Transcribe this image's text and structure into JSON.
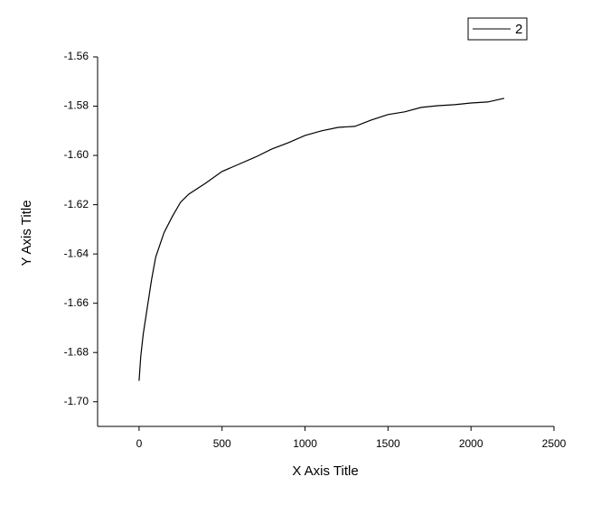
{
  "chart_data": {
    "type": "line",
    "x_label": "X Axis Title",
    "y_label": "Y Axis Title",
    "xlim": [
      -250,
      2500
    ],
    "ylim": [
      -1.71,
      -1.56
    ],
    "xticks": [
      0,
      500,
      1000,
      1500,
      2000,
      2500
    ],
    "yticks": [
      -1.56,
      -1.58,
      {
        "value": -1.6,
        "label": "-1.60"
      },
      -1.62,
      -1.64,
      -1.66,
      -1.68,
      {
        "value": -1.7,
        "label": "-1.70"
      }
    ],
    "legend": "top-right",
    "series": [
      {
        "name": "2",
        "color": "#000000",
        "x": [
          0,
          10,
          25,
          50,
          75,
          100,
          150,
          200,
          250,
          300,
          400,
          500,
          600,
          700,
          800,
          900,
          1000,
          1100,
          1200,
          1300,
          1400,
          1500,
          1600,
          1700,
          1800,
          1900,
          2000,
          2100,
          2200
        ],
        "values": [
          -1.6915,
          -1.6816,
          -1.6725,
          -1.6615,
          -1.6505,
          -1.6413,
          -1.6314,
          -1.6248,
          -1.619,
          -1.6157,
          -1.6113,
          -1.6065,
          -1.6036,
          -1.6007,
          -1.5974,
          -1.5948,
          -1.5919,
          -1.59,
          -1.5886,
          -1.5882,
          -1.5856,
          -1.5834,
          -1.5823,
          -1.5805,
          -1.5798,
          -1.5794,
          -1.5787,
          -1.5783,
          -1.5768
        ]
      }
    ]
  }
}
